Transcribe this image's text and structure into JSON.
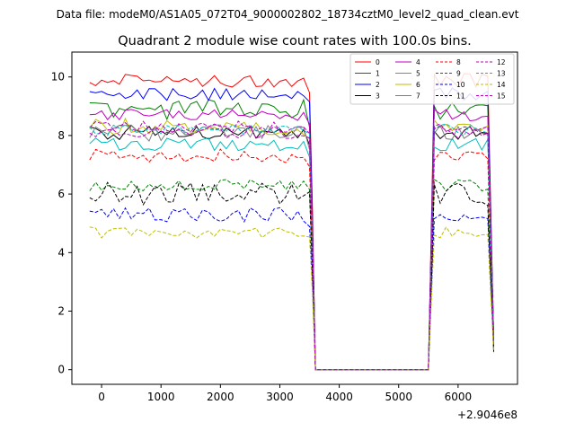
{
  "header": {
    "suptitle": "Data file: modeM0/AS1A05_072T04_9000002802_18734cztM0_level2_quad_clean.evt",
    "title": "Quadrant 2 module wise count rates with 100.0s bins."
  },
  "chart_data": {
    "type": "line",
    "title": "Quadrant 2 module wise count rates with 100.0s bins.",
    "xlabel": "",
    "ylabel": "",
    "x_offset_label": "+2.9046e8",
    "xlim": [
      -500,
      7000
    ],
    "ylim": [
      -0.5,
      10.85
    ],
    "x_ticks": [
      0,
      1000,
      2000,
      3000,
      4000,
      5000,
      6000
    ],
    "y_ticks": [
      0,
      2,
      4,
      6,
      8,
      10
    ],
    "grid": false,
    "legend": {
      "position": "top-right",
      "columns": 4
    },
    "segments": [
      {
        "x_start": -200,
        "x_end": 3600,
        "step": 100
      },
      {
        "x_start": 5500,
        "x_end": 6600,
        "step": 100
      }
    ],
    "gap": {
      "x_start": 3600,
      "x_end": 5500,
      "value": 0
    },
    "series": [
      {
        "name": "0",
        "color": "#ff0000",
        "dash": false,
        "level": 9.9,
        "amp": 0.25,
        "seed": 1,
        "tail": 1.0
      },
      {
        "name": "1",
        "color": "#008000",
        "dash": false,
        "level": 8.9,
        "amp": 0.35,
        "seed": 2,
        "tail": 1.2
      },
      {
        "name": "2",
        "color": "#0000ff",
        "dash": false,
        "level": 9.4,
        "amp": 0.22,
        "seed": 3,
        "tail": 1.1
      },
      {
        "name": "3",
        "color": "#000000",
        "dash": false,
        "level": 8.1,
        "amp": 0.25,
        "seed": 4,
        "tail": 0.6
      },
      {
        "name": "4",
        "color": "#bf00bf",
        "dash": false,
        "level": 8.7,
        "amp": 0.2,
        "seed": 5,
        "tail": 1.0
      },
      {
        "name": "5",
        "color": "#00bfbf",
        "dash": false,
        "level": 7.7,
        "amp": 0.22,
        "seed": 6,
        "tail": 0.9
      },
      {
        "name": "6",
        "color": "#bfbf00",
        "dash": false,
        "level": 8.3,
        "amp": 0.3,
        "seed": 7,
        "tail": 0.9
      },
      {
        "name": "7",
        "color": "#808080",
        "dash": false,
        "level": 8.1,
        "amp": 0.3,
        "seed": 8,
        "tail": 0.9
      },
      {
        "name": "8",
        "color": "#ff0000",
        "dash": true,
        "level": 7.3,
        "amp": 0.25,
        "seed": 9,
        "tail": 0.8
      },
      {
        "name": "9",
        "color": "#008000",
        "dash": true,
        "level": 6.3,
        "amp": 0.2,
        "seed": 10,
        "tail": 0.7
      },
      {
        "name": "10",
        "color": "#0000ff",
        "dash": true,
        "level": 5.3,
        "amp": 0.25,
        "seed": 11,
        "tail": 0.7
      },
      {
        "name": "11",
        "color": "#000000",
        "dash": true,
        "level": 6.0,
        "amp": 0.4,
        "seed": 12,
        "tail": 0.7
      },
      {
        "name": "12",
        "color": "#bf00bf",
        "dash": true,
        "level": 8.3,
        "amp": 0.2,
        "seed": 13,
        "tail": 0.9
      },
      {
        "name": "13",
        "color": "#00bfbf",
        "dash": true,
        "level": 8.2,
        "amp": 0.2,
        "seed": 14,
        "tail": 0.9
      },
      {
        "name": "14",
        "color": "#bfbf00",
        "dash": true,
        "level": 4.7,
        "amp": 0.2,
        "seed": 15,
        "tail": 0.6
      },
      {
        "name": "15",
        "color": "#bf00bf",
        "dash": true,
        "level": 8.1,
        "amp": 0.22,
        "seed": 16,
        "tail": 0.9
      }
    ]
  }
}
